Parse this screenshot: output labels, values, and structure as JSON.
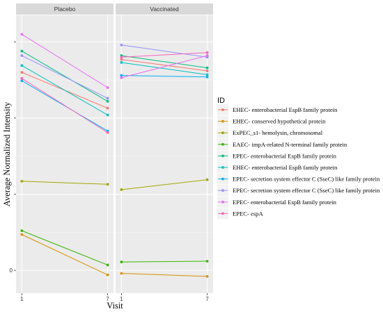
{
  "chart_data": {
    "type": "line",
    "facets": [
      "Placebo",
      "Vaccinated"
    ],
    "x": [
      "1",
      "7"
    ],
    "xlabel": "Visit",
    "ylabel": "Average Normalized Intensity",
    "y_tick_labels": [
      "0",
      "",
      "",
      ""
    ],
    "y_tick_values": [
      0,
      1,
      2,
      3
    ],
    "ylim": [
      -0.3,
      3.35
    ],
    "legend_title": "ID",
    "legend_position": "right",
    "grid": true,
    "series": [
      {
        "name": "EHEC- enterobacterial EspB family protein",
        "color": "#F8766D",
        "values": {
          "Placebo": [
            2.6,
            2.13
          ],
          "Vaccinated": [
            2.77,
            2.62
          ]
        }
      },
      {
        "name": "EHEC- conserved hypothetical protein",
        "color": "#D89000",
        "values": {
          "Placebo": [
            0.47,
            -0.06
          ],
          "Vaccinated": [
            -0.04,
            -0.08
          ]
        }
      },
      {
        "name": "ExPEC_s1- hemolysin, chromosomal",
        "color": "#A3A500",
        "values": {
          "Placebo": [
            1.17,
            1.13
          ],
          "Vaccinated": [
            1.06,
            1.19
          ]
        }
      },
      {
        "name": "EAEC- impA-related N-terminal family protein",
        "color": "#39B600",
        "values": {
          "Placebo": [
            0.52,
            0.07
          ],
          "Vaccinated": [
            0.11,
            0.12
          ]
        }
      },
      {
        "name": "EPEC- enterobacterial EspB family protein",
        "color": "#00BF7D",
        "values": {
          "Placebo": [
            2.88,
            2.22
          ],
          "Vaccinated": [
            2.82,
            2.66
          ]
        }
      },
      {
        "name": "EHEC- enterobacterial EspB family protein",
        "color": "#00BFC4",
        "values": {
          "Placebo": [
            2.69,
            2.04
          ],
          "Vaccinated": [
            2.73,
            2.57
          ]
        }
      },
      {
        "name": "EPEC- secretion system effector C (SseC) like family protein",
        "color": "#00B0F6",
        "values": {
          "Placebo": [
            2.49,
            1.83
          ],
          "Vaccinated": [
            2.56,
            2.54
          ]
        }
      },
      {
        "name": "EPEC- secretion system effector C (SseC) like family protein",
        "color": "#9590FF",
        "values": {
          "Placebo": [
            2.82,
            2.26
          ],
          "Vaccinated": [
            2.96,
            2.8
          ]
        }
      },
      {
        "name": "EPEC- enterobacterial EspB family protein",
        "color": "#E76BF3",
        "values": {
          "Placebo": [
            3.1,
            2.4
          ],
          "Vaccinated": [
            2.53,
            2.82
          ]
        }
      },
      {
        "name": "EPEC- espA",
        "color": "#FF62BC",
        "values": {
          "Placebo": [
            2.52,
            1.81
          ],
          "Vaccinated": [
            2.8,
            2.86
          ]
        }
      }
    ]
  }
}
